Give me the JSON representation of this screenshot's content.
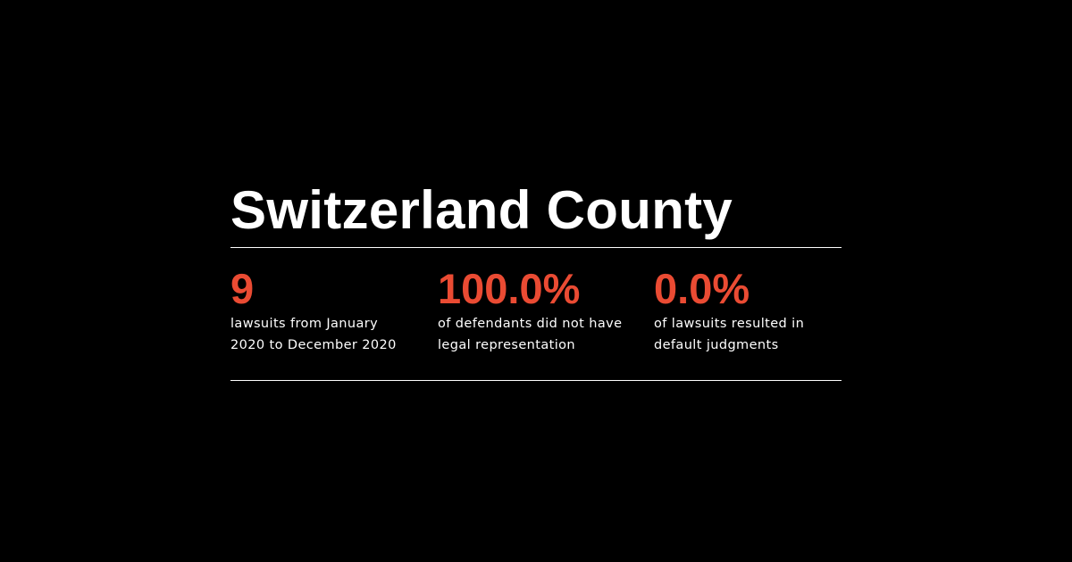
{
  "county": {
    "title": "Switzerland County"
  },
  "colors": {
    "background": "#000000",
    "accent": "#ea4b33",
    "text": "#ffffff"
  },
  "stats": [
    {
      "value": "9",
      "label_line1": "lawsuits from January",
      "label_line2": "2020 to December 2020"
    },
    {
      "value": "100.0%",
      "label_line1": "of defendants did not have",
      "label_line2": "legal representation"
    },
    {
      "value": "0.0%",
      "label_line1": "of lawsuits resulted in",
      "label_line2": "default judgments"
    }
  ]
}
